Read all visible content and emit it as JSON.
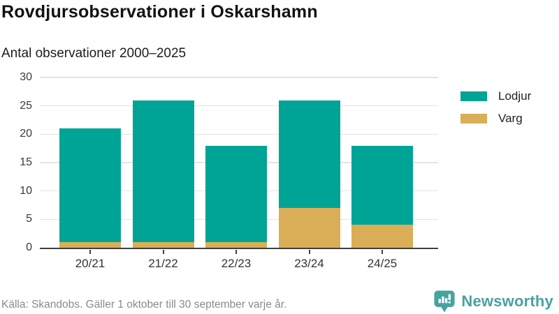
{
  "header": {
    "title": "Rovdjursobservationer i Oskarshamn",
    "subtitle": "Antal observationer 2000–2025"
  },
  "chart_data": {
    "type": "bar",
    "stacked": true,
    "categories": [
      "20/21",
      "21/22",
      "22/23",
      "23/24",
      "24/25"
    ],
    "series": [
      {
        "name": "Lodjur",
        "color": "#00A496",
        "values": [
          20,
          25,
          17,
          19,
          14
        ]
      },
      {
        "name": "Varg",
        "color": "#DAAE57",
        "values": [
          1,
          1,
          1,
          7,
          4
        ]
      }
    ],
    "totals": [
      21,
      26,
      18,
      26,
      18
    ],
    "title": "Rovdjursobservationer i Oskarshamn",
    "subtitle": "Antal observationer 2000–2025",
    "xlabel": "",
    "ylabel": "",
    "ylim": [
      0,
      30
    ],
    "yticks": [
      0,
      5,
      10,
      15,
      20,
      25,
      30
    ],
    "grid": true,
    "legend_position": "right",
    "stack_bottom_to_top": [
      "Varg",
      "Lodjur"
    ]
  },
  "footer": {
    "source": "Källa: Skandobs. Gäller 1 oktober till 30 september varje år.",
    "logo_text": "Newsworthy"
  },
  "colors": {
    "lodjur": "#00A496",
    "varg": "#DAAE57",
    "gridline": "#E4E4E4",
    "axis": "#3F3F3F",
    "title_text": "#121212",
    "body_text": "#333333",
    "muted_text": "#8A8A8A",
    "logo_teal": "#4AA1A0"
  }
}
